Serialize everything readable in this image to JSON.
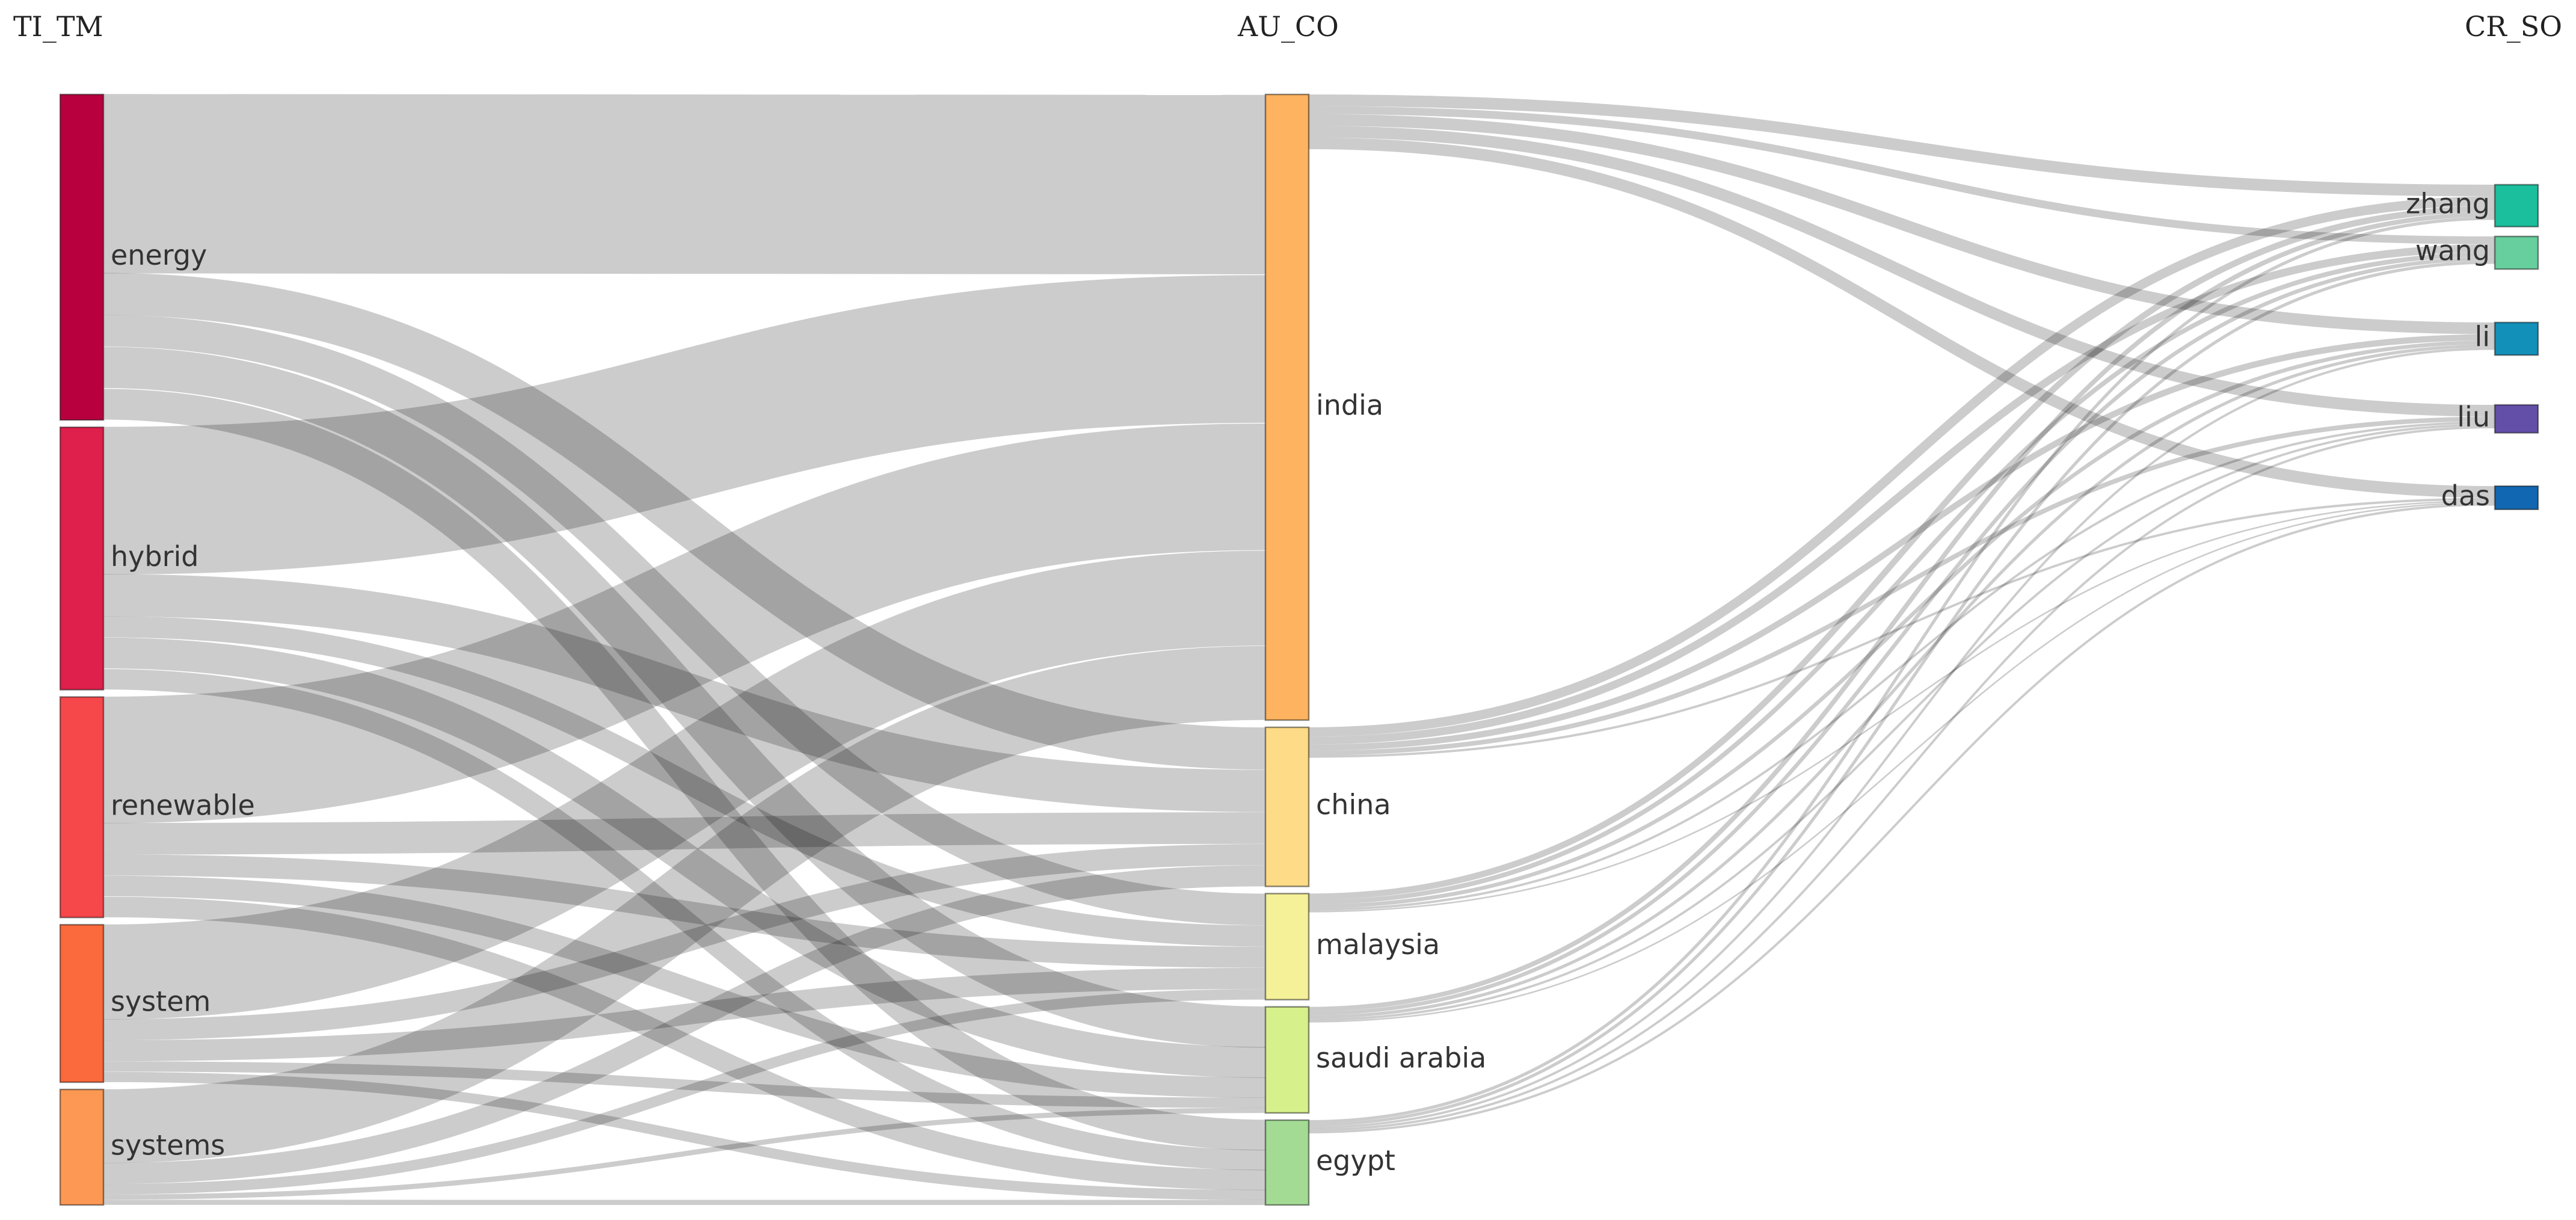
{
  "columns": {
    "left": {
      "title": "TI_TM"
    },
    "middle": {
      "title": "AU_CO"
    },
    "right": {
      "title": "CR_SO"
    }
  },
  "nodes": [
    {
      "id": "energy",
      "label": "energy",
      "column": "left",
      "value": 31,
      "color": "#B8003F"
    },
    {
      "id": "hybrid",
      "label": "hybrid",
      "column": "left",
      "value": 25,
      "color": "#DF1F4C"
    },
    {
      "id": "renewable",
      "label": "renewable",
      "column": "left",
      "value": 21,
      "color": "#F6474B"
    },
    {
      "id": "system",
      "label": "system",
      "column": "left",
      "value": 15,
      "color": "#FB6A3C"
    },
    {
      "id": "systems",
      "label": "systems",
      "column": "left",
      "value": 11,
      "color": "#FD9854"
    },
    {
      "id": "india",
      "label": "india",
      "column": "middle",
      "value": 59,
      "color": "#FDB35F"
    },
    {
      "id": "china",
      "label": "china",
      "column": "middle",
      "value": 15,
      "color": "#FEDB86"
    },
    {
      "id": "malaysia",
      "label": "malaysia",
      "column": "middle",
      "value": 10,
      "color": "#F5F199"
    },
    {
      "id": "saudi arabia",
      "label": "saudi arabia",
      "column": "middle",
      "value": 10,
      "color": "#D6F08B"
    },
    {
      "id": "egypt",
      "label": "egypt",
      "column": "middle",
      "value": 8,
      "color": "#A3DB95"
    },
    {
      "id": "zhang",
      "label": "zhang",
      "column": "right",
      "value": 4.5,
      "color": "#1BBE9D"
    },
    {
      "id": "wang",
      "label": "wang",
      "column": "right",
      "value": 3.5,
      "color": "#66CF9D"
    },
    {
      "id": "li",
      "label": "li",
      "column": "right",
      "value": 3.5,
      "color": "#1290B9"
    },
    {
      "id": "liu",
      "label": "liu",
      "column": "right",
      "value": 3,
      "color": "#644FA8"
    },
    {
      "id": "das",
      "label": "das",
      "column": "right",
      "value": 2.5,
      "color": "#1167B1"
    }
  ],
  "links": [
    {
      "source": "energy",
      "target": "india",
      "value": 17
    },
    {
      "source": "energy",
      "target": "china",
      "value": 4
    },
    {
      "source": "energy",
      "target": "malaysia",
      "value": 3
    },
    {
      "source": "energy",
      "target": "saudi arabia",
      "value": 4
    },
    {
      "source": "energy",
      "target": "egypt",
      "value": 3
    },
    {
      "source": "hybrid",
      "target": "india",
      "value": 14
    },
    {
      "source": "hybrid",
      "target": "china",
      "value": 4
    },
    {
      "source": "hybrid",
      "target": "malaysia",
      "value": 2
    },
    {
      "source": "hybrid",
      "target": "saudi arabia",
      "value": 3
    },
    {
      "source": "hybrid",
      "target": "egypt",
      "value": 2
    },
    {
      "source": "renewable",
      "target": "india",
      "value": 12
    },
    {
      "source": "renewable",
      "target": "china",
      "value": 3
    },
    {
      "source": "renewable",
      "target": "malaysia",
      "value": 2
    },
    {
      "source": "renewable",
      "target": "saudi arabia",
      "value": 2
    },
    {
      "source": "renewable",
      "target": "egypt",
      "value": 2
    },
    {
      "source": "system",
      "target": "india",
      "value": 9
    },
    {
      "source": "system",
      "target": "china",
      "value": 2
    },
    {
      "source": "system",
      "target": "malaysia",
      "value": 2
    },
    {
      "source": "system",
      "target": "saudi arabia",
      "value": 1
    },
    {
      "source": "system",
      "target": "egypt",
      "value": 1
    },
    {
      "source": "systems",
      "target": "india",
      "value": 7
    },
    {
      "source": "systems",
      "target": "china",
      "value": 2
    },
    {
      "source": "systems",
      "target": "malaysia",
      "value": 1
    },
    {
      "source": "systems",
      "target": "saudi arabia",
      "value": 0.5
    },
    {
      "source": "systems",
      "target": "egypt",
      "value": 0.5
    },
    {
      "source": "india",
      "target": "zhang",
      "value": 1.5
    },
    {
      "source": "india",
      "target": "wang",
      "value": 1
    },
    {
      "source": "india",
      "target": "li",
      "value": 1.5
    },
    {
      "source": "india",
      "target": "liu",
      "value": 1.5
    },
    {
      "source": "india",
      "target": "das",
      "value": 1.5
    },
    {
      "source": "china",
      "target": "zhang",
      "value": 1.2
    },
    {
      "source": "china",
      "target": "wang",
      "value": 1
    },
    {
      "source": "china",
      "target": "li",
      "value": 0.8
    },
    {
      "source": "china",
      "target": "liu",
      "value": 0.6
    },
    {
      "source": "china",
      "target": "das",
      "value": 0.3
    },
    {
      "source": "malaysia",
      "target": "zhang",
      "value": 0.8
    },
    {
      "source": "malaysia",
      "target": "wang",
      "value": 0.6
    },
    {
      "source": "malaysia",
      "target": "li",
      "value": 0.5
    },
    {
      "source": "malaysia",
      "target": "liu",
      "value": 0.3
    },
    {
      "source": "malaysia",
      "target": "das",
      "value": 0.2
    },
    {
      "source": "saudi arabia",
      "target": "zhang",
      "value": 0.6
    },
    {
      "source": "saudi arabia",
      "target": "wang",
      "value": 0.5
    },
    {
      "source": "saudi arabia",
      "target": "li",
      "value": 0.4
    },
    {
      "source": "saudi arabia",
      "target": "liu",
      "value": 0.3
    },
    {
      "source": "saudi arabia",
      "target": "das",
      "value": 0.2
    },
    {
      "source": "egypt",
      "target": "zhang",
      "value": 0.4
    },
    {
      "source": "egypt",
      "target": "wang",
      "value": 0.4
    },
    {
      "source": "egypt",
      "target": "li",
      "value": 0.3
    },
    {
      "source": "egypt",
      "target": "liu",
      "value": 0.3
    },
    {
      "source": "egypt",
      "target": "das",
      "value": 0.3
    }
  ]
}
